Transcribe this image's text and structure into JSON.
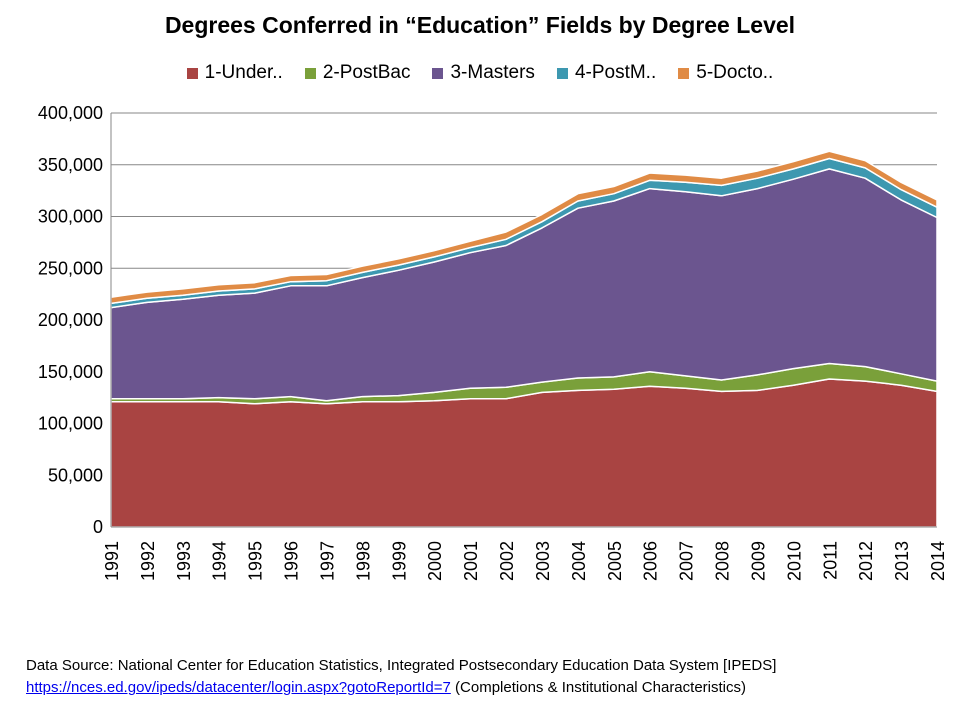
{
  "chart_data": {
    "type": "area",
    "stacked": true,
    "title": "Degrees Conferred in “Education” Fields by Degree Level",
    "xlabel": "",
    "ylabel": "",
    "ylim": [
      0,
      400000
    ],
    "yticks": [
      0,
      50000,
      100000,
      150000,
      200000,
      250000,
      300000,
      350000,
      400000
    ],
    "ytick_labels": [
      "0",
      "50,000",
      "100,000",
      "150,000",
      "200,000",
      "250,000",
      "300,000",
      "350,000",
      "400,000"
    ],
    "legend_position": "top",
    "grid": "horizontal",
    "x": [
      "1991",
      "1992",
      "1993",
      "1994",
      "1995",
      "1996",
      "1997",
      "1998",
      "1999",
      "2000",
      "2001",
      "2002",
      "2003",
      "2004",
      "2005",
      "2006",
      "2007",
      "2008",
      "2009",
      "2010",
      "2011",
      "2012",
      "2013",
      "2014"
    ],
    "series": [
      {
        "name": "1-Under..",
        "color": "#a94442",
        "values": [
          121000,
          121000,
          121000,
          121000,
          119000,
          121000,
          119000,
          121000,
          121000,
          122000,
          124000,
          124000,
          130000,
          132000,
          133000,
          136000,
          134000,
          131000,
          132000,
          137000,
          143000,
          141000,
          137000,
          131000
        ]
      },
      {
        "name": "2-PostBac",
        "color": "#7aa03a",
        "values": [
          3000,
          3000,
          3000,
          4000,
          5000,
          5000,
          3000,
          5000,
          6000,
          8000,
          10000,
          11000,
          10000,
          12000,
          12000,
          14000,
          12000,
          11000,
          15000,
          16000,
          15000,
          14000,
          11000,
          10000
        ]
      },
      {
        "name": "3-Masters",
        "color": "#6b558f",
        "values": [
          88000,
          93000,
          96000,
          99000,
          102000,
          107000,
          111000,
          115000,
          121000,
          126000,
          131000,
          137000,
          149000,
          164000,
          170000,
          177000,
          178000,
          178000,
          180000,
          183000,
          188000,
          182000,
          168000,
          158000
        ]
      },
      {
        "name": "4-PostM..",
        "color": "#3d98b0",
        "values": [
          4000,
          4000,
          4000,
          4000,
          4000,
          4000,
          5000,
          5000,
          5000,
          5000,
          5000,
          6000,
          6000,
          7000,
          7000,
          8000,
          9000,
          10000,
          10000,
          10000,
          10000,
          10000,
          10000,
          10000
        ]
      },
      {
        "name": "5-Docto..",
        "color": "#e08b45",
        "values": [
          6000,
          6000,
          6000,
          6000,
          6000,
          6000,
          6000,
          6000,
          6000,
          6000,
          6000,
          7000,
          7000,
          7000,
          7000,
          7000,
          7000,
          7000,
          7000,
          7000,
          7000,
          7000,
          7000,
          7000
        ]
      }
    ]
  },
  "source": {
    "line1": "Data Source: National Center for Education Statistics, Integrated Postsecondary Education Data System [IPEDS]",
    "link_text": "https://nces.ed.gov/ipeds/datacenter/login.aspx?gotoReportId=7",
    "line2_suffix": " (Completions & Institutional Characteristics)"
  }
}
